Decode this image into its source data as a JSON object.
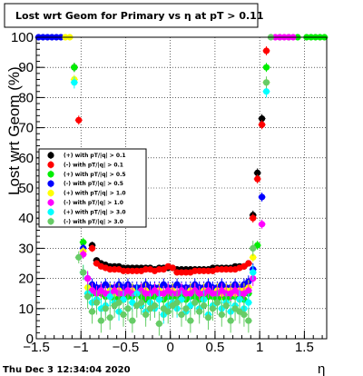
{
  "title": "Lost wrt Geom for Primary vs   η at pT > 0.11",
  "footer": "Thu Dec  3 12:34:04 2020",
  "chart_data": {
    "type": "scatter",
    "title": "Lost wrt Geom for Primary vs   η at pT > 0.11",
    "xlabel": "η",
    "ylabel": "Lost wrt Geom (%)",
    "xlim": [
      -1.5,
      1.75
    ],
    "ylim": [
      0,
      100
    ],
    "x_ticks": [
      -1.5,
      -1,
      -0.5,
      0,
      0.5,
      1,
      1.5
    ],
    "x_tick_labels": [
      "−1.5",
      "−1",
      "−0.5",
      "0",
      "0.5",
      "1",
      "1.5"
    ],
    "y_ticks": [
      0,
      10,
      20,
      30,
      40,
      50,
      60,
      70,
      80,
      90,
      100
    ],
    "y_tick_labels": [
      "0",
      "10",
      "20",
      "30",
      "40",
      "50",
      "60",
      "70",
      "80",
      "90",
      "100"
    ],
    "grid": true,
    "legend_position": "middle-left",
    "series": [
      {
        "name": "(+) with pT/|q| > 0.1",
        "color": "#000000",
        "x": [
          -1.075,
          -0.875,
          -0.825,
          -0.775,
          -0.725,
          -0.675,
          -0.625,
          -0.575,
          -0.525,
          -0.475,
          -0.425,
          -0.375,
          -0.325,
          -0.275,
          -0.225,
          -0.175,
          -0.125,
          -0.075,
          -0.025,
          0.025,
          0.075,
          0.125,
          0.175,
          0.225,
          0.275,
          0.325,
          0.375,
          0.425,
          0.475,
          0.525,
          0.575,
          0.625,
          0.675,
          0.725,
          0.775,
          0.825,
          0.875,
          0.925,
          0.975,
          1.025
        ],
        "y": [
          90,
          31,
          26,
          25,
          24.5,
          24,
          24,
          24,
          23.5,
          23.5,
          23.5,
          23.5,
          23.5,
          23.5,
          23.5,
          23,
          23.5,
          23.5,
          23.5,
          23.5,
          23,
          23,
          23,
          23,
          23,
          23,
          23,
          23,
          23.5,
          23.5,
          23.5,
          23.5,
          23.5,
          24,
          24,
          24,
          25,
          41,
          55,
          73
        ],
        "err": [
          1.5,
          1.2,
          1,
          1,
          1,
          1,
          1,
          1,
          1,
          1,
          1,
          1,
          1,
          1,
          1,
          1,
          1,
          1,
          1,
          1,
          1,
          1,
          1,
          1,
          1,
          1,
          1,
          1,
          1,
          1,
          1,
          1,
          1,
          1,
          1,
          1,
          1,
          1.5,
          1.5,
          1.5
        ]
      },
      {
        "name": "(-) with pT/|q| > 0.1",
        "color": "#ff0000",
        "x": [
          -1.025,
          -0.875,
          -0.825,
          -0.775,
          -0.725,
          -0.675,
          -0.625,
          -0.575,
          -0.525,
          -0.475,
          -0.425,
          -0.375,
          -0.325,
          -0.275,
          -0.225,
          -0.175,
          -0.125,
          -0.075,
          -0.025,
          0.025,
          0.075,
          0.125,
          0.175,
          0.225,
          0.275,
          0.325,
          0.375,
          0.425,
          0.475,
          0.525,
          0.575,
          0.625,
          0.675,
          0.725,
          0.775,
          0.825,
          0.875,
          0.925,
          0.975,
          1.025,
          1.075
        ],
        "y": [
          72.5,
          30,
          25,
          24,
          23.5,
          23,
          23,
          23,
          22.5,
          22.5,
          22.5,
          22.5,
          22.5,
          23,
          23,
          22.5,
          23,
          23,
          24,
          23.5,
          22,
          22,
          22,
          22,
          22.5,
          22.5,
          22.5,
          22.5,
          22.5,
          23,
          23,
          23,
          23,
          23,
          23.5,
          24,
          25,
          40,
          53,
          71,
          95.5
        ],
        "err": [
          1.5,
          1.2,
          1,
          1,
          1,
          1,
          1,
          1,
          1,
          1,
          1,
          1,
          1,
          1,
          1,
          1,
          1,
          1,
          1,
          1,
          1,
          1,
          1,
          1,
          1,
          1,
          1,
          1,
          1,
          1,
          1,
          1,
          1,
          1,
          1,
          1,
          1,
          1.5,
          1.5,
          1.5,
          1.5
        ]
      },
      {
        "name": "(+) with pT/|q| > 0.5",
        "color": "#00ee00",
        "x": [
          -1.075,
          -0.975,
          -0.875,
          -0.825,
          -0.775,
          -0.725,
          -0.675,
          -0.625,
          -0.575,
          -0.525,
          -0.475,
          -0.425,
          -0.375,
          -0.325,
          -0.275,
          -0.225,
          -0.175,
          -0.125,
          -0.075,
          -0.025,
          0.025,
          0.075,
          0.125,
          0.175,
          0.225,
          0.275,
          0.325,
          0.375,
          0.425,
          0.475,
          0.525,
          0.575,
          0.625,
          0.675,
          0.725,
          0.775,
          0.825,
          0.875,
          0.975,
          1.075,
          1.225,
          1.325,
          1.425,
          1.525,
          1.575,
          1.625,
          1.675,
          1.725
        ],
        "y": [
          90,
          32,
          15,
          13,
          15,
          14,
          14,
          13,
          14,
          13,
          14,
          14,
          15,
          14,
          13,
          14,
          14,
          13,
          13,
          14,
          14,
          14,
          14,
          13,
          14,
          14,
          13,
          14,
          14,
          14,
          13,
          14,
          13,
          14,
          14,
          14,
          13,
          15,
          31,
          90,
          100,
          100,
          100,
          100,
          100,
          100,
          100,
          100
        ],
        "err": [
          1.5,
          1.5,
          3,
          3,
          3,
          3,
          3,
          3,
          3,
          3,
          3,
          3,
          3,
          3,
          3,
          3,
          3,
          3,
          3,
          3,
          3,
          3,
          3,
          3,
          3,
          3,
          3,
          3,
          3,
          3,
          3,
          3,
          3,
          3,
          3,
          3,
          3,
          3,
          1.5,
          1.5,
          0,
          0,
          0,
          0,
          0,
          0,
          0,
          0
        ]
      },
      {
        "name": "(-) with pT/|q| > 0.5",
        "color": "#0000ff",
        "x": [
          -1.475,
          -1.425,
          -1.375,
          -1.325,
          -1.275,
          -1.225,
          -0.975,
          -0.925,
          -0.875,
          -0.825,
          -0.775,
          -0.725,
          -0.675,
          -0.625,
          -0.575,
          -0.525,
          -0.475,
          -0.425,
          -0.375,
          -0.325,
          -0.275,
          -0.225,
          -0.175,
          -0.125,
          -0.075,
          -0.025,
          0.025,
          0.075,
          0.125,
          0.175,
          0.225,
          0.275,
          0.325,
          0.375,
          0.425,
          0.475,
          0.525,
          0.575,
          0.625,
          0.675,
          0.725,
          0.775,
          0.825,
          0.875,
          0.925,
          1.025
        ],
        "y": [
          100,
          100,
          100,
          100,
          100,
          100,
          30,
          20,
          18,
          17,
          17,
          18,
          17,
          17,
          18,
          17,
          18,
          17,
          17,
          17,
          18,
          17,
          17,
          17,
          18,
          17,
          17,
          18,
          17,
          17,
          17,
          18,
          17,
          17,
          18,
          17,
          17,
          18,
          17,
          17,
          18,
          17,
          18,
          19,
          23,
          47
        ],
        "err": [
          0,
          0,
          0,
          0,
          0,
          0,
          1.5,
          2,
          2,
          2,
          2,
          2,
          2,
          2,
          2,
          2,
          2,
          2,
          2,
          2,
          2,
          2,
          2,
          2,
          2,
          2,
          2,
          2,
          2,
          2,
          2,
          2,
          2,
          2,
          2,
          2,
          2,
          2,
          2,
          2,
          2,
          2,
          2,
          2,
          2,
          1.5
        ]
      },
      {
        "name": "(+) with pT/|q| > 1.0",
        "color": "#ffff00",
        "x": [
          -1.175,
          -1.125,
          -1.075,
          -0.975,
          -0.925,
          -0.875,
          -0.825,
          -0.775,
          -0.725,
          -0.675,
          -0.625,
          -0.575,
          -0.525,
          -0.475,
          -0.425,
          -0.375,
          -0.325,
          -0.275,
          -0.225,
          -0.175,
          -0.125,
          -0.075,
          -0.025,
          0.025,
          0.075,
          0.125,
          0.175,
          0.225,
          0.275,
          0.325,
          0.375,
          0.425,
          0.475,
          0.525,
          0.575,
          0.625,
          0.675,
          0.725,
          0.775,
          0.825,
          0.875,
          0.925,
          1.075
        ],
        "y": [
          100,
          100,
          86,
          29,
          17,
          16,
          15,
          16,
          15,
          16,
          15,
          16,
          15,
          16,
          16,
          15,
          16,
          16,
          15,
          16,
          16,
          15,
          16,
          16,
          15,
          16,
          15,
          16,
          16,
          15,
          16,
          16,
          15,
          16,
          15,
          16,
          16,
          15,
          16,
          16,
          17,
          27,
          85
        ],
        "err": [
          0,
          0,
          1.5,
          1.5,
          2.5,
          2.5,
          2.5,
          2.5,
          2.5,
          2.5,
          2.5,
          2.5,
          2.5,
          2.5,
          2.5,
          2.5,
          2.5,
          2.5,
          2.5,
          2.5,
          2.5,
          2.5,
          2.5,
          2.5,
          2.5,
          2.5,
          2.5,
          2.5,
          2.5,
          2.5,
          2.5,
          2.5,
          2.5,
          2.5,
          2.5,
          2.5,
          2.5,
          2.5,
          2.5,
          2.5,
          2.5,
          1.5,
          1.5
        ]
      },
      {
        "name": "(-) with pT/|q| > 1.0",
        "color": "#ff00ff",
        "x": [
          -0.975,
          -0.925,
          -0.875,
          -0.825,
          -0.775,
          -0.725,
          -0.675,
          -0.625,
          -0.575,
          -0.525,
          -0.475,
          -0.425,
          -0.375,
          -0.325,
          -0.275,
          -0.225,
          -0.175,
          -0.125,
          -0.075,
          -0.025,
          0.025,
          0.075,
          0.125,
          0.175,
          0.225,
          0.275,
          0.325,
          0.375,
          0.425,
          0.475,
          0.525,
          0.575,
          0.625,
          0.675,
          0.725,
          0.775,
          0.825,
          0.875,
          0.925,
          1.025,
          1.175,
          1.225,
          1.275,
          1.325,
          1.375
        ],
        "y": [
          28,
          20,
          16,
          15,
          16,
          15,
          15,
          16,
          15,
          15,
          16,
          15,
          15,
          16,
          15,
          15,
          16,
          15,
          15,
          16,
          15,
          15,
          16,
          15,
          15,
          16,
          15,
          15,
          16,
          15,
          15,
          16,
          15,
          15,
          16,
          15,
          15,
          16,
          20,
          38,
          100,
          100,
          100,
          100,
          100
        ],
        "err": [
          1.5,
          2.5,
          2.5,
          2.5,
          2.5,
          2.5,
          2.5,
          2.5,
          2.5,
          2.5,
          2.5,
          2.5,
          2.5,
          2.5,
          2.5,
          2.5,
          2.5,
          2.5,
          2.5,
          2.5,
          2.5,
          2.5,
          2.5,
          2.5,
          2.5,
          2.5,
          2.5,
          2.5,
          2.5,
          2.5,
          2.5,
          2.5,
          2.5,
          2.5,
          2.5,
          2.5,
          2.5,
          2.5,
          2.5,
          1.5,
          0,
          0,
          0,
          0,
          0
        ]
      },
      {
        "name": "(+) with pT/|q| > 3.0",
        "color": "#00ffff",
        "x": [
          -1.075,
          -0.975,
          -0.925,
          -0.875,
          -0.825,
          -0.775,
          -0.725,
          -0.675,
          -0.625,
          -0.575,
          -0.525,
          -0.475,
          -0.425,
          -0.375,
          -0.325,
          -0.275,
          -0.225,
          -0.175,
          -0.125,
          -0.075,
          -0.025,
          0.025,
          0.075,
          0.125,
          0.175,
          0.225,
          0.275,
          0.325,
          0.375,
          0.425,
          0.475,
          0.525,
          0.575,
          0.625,
          0.675,
          0.725,
          0.775,
          0.825,
          0.875,
          0.925,
          1.075
        ],
        "y": [
          85,
          22,
          15,
          12,
          13,
          10,
          11,
          14,
          12,
          9,
          13,
          10,
          12,
          15,
          11,
          9,
          12,
          10,
          13,
          8,
          11,
          12,
          10,
          13,
          9,
          11,
          12,
          10,
          13,
          8,
          11,
          12,
          10,
          12,
          9,
          11,
          13,
          10,
          12,
          22,
          82
        ],
        "err": [
          2,
          2.5,
          3,
          3,
          3,
          3,
          3,
          3,
          3,
          3,
          3,
          3,
          3,
          3,
          3,
          3,
          3,
          3,
          3,
          3,
          3,
          3,
          3,
          3,
          3,
          3,
          3,
          3,
          3,
          3,
          3,
          3,
          3,
          3,
          3,
          3,
          3,
          3,
          3,
          2.5,
          2
        ]
      },
      {
        "name": "(-) with pT/|q| > 3.0",
        "color": "#66cc66",
        "x": [
          -1.025,
          -0.975,
          -0.925,
          -0.875,
          -0.825,
          -0.775,
          -0.725,
          -0.675,
          -0.625,
          -0.575,
          -0.525,
          -0.475,
          -0.425,
          -0.375,
          -0.325,
          -0.275,
          -0.225,
          -0.175,
          -0.125,
          -0.075,
          -0.025,
          0.025,
          0.075,
          0.125,
          0.175,
          0.225,
          0.275,
          0.325,
          0.375,
          0.425,
          0.475,
          0.525,
          0.575,
          0.625,
          0.675,
          0.725,
          0.775,
          0.825,
          0.875,
          0.925,
          1.075,
          1.125
        ],
        "y": [
          27,
          22,
          14,
          9,
          12,
          6,
          10,
          7,
          11,
          12,
          8,
          10,
          6,
          11,
          12,
          8,
          10,
          11,
          5,
          10,
          9,
          11,
          12,
          8,
          10,
          6,
          12,
          9,
          11,
          7,
          10,
          12,
          8,
          11,
          6,
          10,
          9,
          8,
          6,
          30,
          85,
          100
        ],
        "err": [
          2,
          2.5,
          4,
          4,
          4,
          4,
          4,
          4,
          4,
          4,
          4,
          4,
          4,
          4,
          4,
          4,
          4,
          4,
          4,
          4,
          4,
          4,
          4,
          4,
          4,
          4,
          4,
          4,
          4,
          4,
          4,
          4,
          4,
          4,
          4,
          4,
          4,
          4,
          4,
          2.5,
          2,
          0
        ]
      }
    ]
  }
}
